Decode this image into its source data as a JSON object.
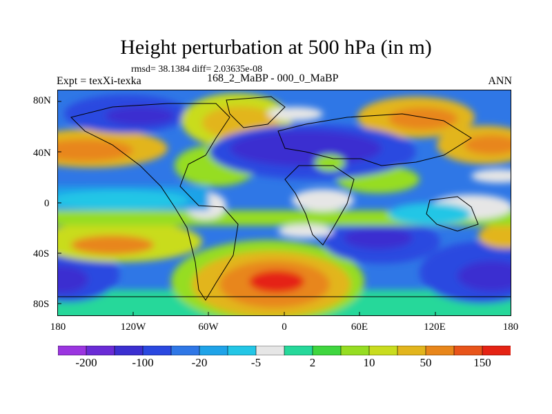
{
  "title": "Height perturbation at 500 hPa (in m)",
  "stats": "rmsd= 38.1384  diff= 2.03635e-08",
  "expt": "Expt = texXi-texka",
  "subtitle": "168_2_MaBP - 000_0_MaBP",
  "season": "ANN",
  "map": {
    "lat_ticks": [
      "80N",
      "40N",
      "0",
      "40S",
      "80S"
    ],
    "lon_ticks": [
      "180",
      "120W",
      "60W",
      "0",
      "60E",
      "120E",
      "180"
    ]
  },
  "colorbar": {
    "colors": [
      "#9b35e0",
      "#6a2bd6",
      "#3b2fd0",
      "#2a48e0",
      "#2f77e6",
      "#1fa3e8",
      "#23c6e6",
      "#e6e6e6",
      "#26d89a",
      "#3fd63f",
      "#96dd22",
      "#c9dc1f",
      "#e2b51d",
      "#e8861b",
      "#e8541a",
      "#e52314"
    ],
    "labels": [
      "-200",
      "-100",
      "-20",
      "-5",
      "2",
      "10",
      "50",
      "150"
    ]
  },
  "colors": {
    "land_outline": "#000000",
    "frame": "#000000"
  }
}
